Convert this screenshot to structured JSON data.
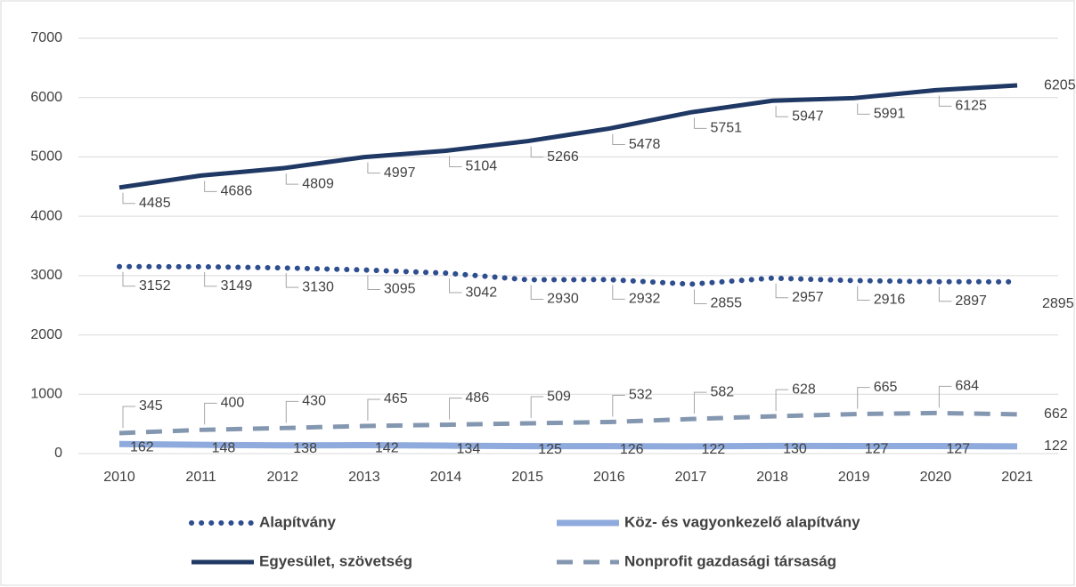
{
  "chart_data": {
    "type": "line",
    "categories": [
      "2010",
      "2011",
      "2012",
      "2013",
      "2014",
      "2015",
      "2016",
      "2017",
      "2018",
      "2019",
      "2020",
      "2021"
    ],
    "ylim": [
      0,
      7000
    ],
    "yticks": [
      0,
      1000,
      2000,
      3000,
      4000,
      5000,
      6000,
      7000
    ],
    "grid": true,
    "series": [
      {
        "name": "Alapítvány",
        "color": "#2e4e8f",
        "style": "dotted",
        "values": [
          3152,
          3149,
          3130,
          3095,
          3042,
          2930,
          2932,
          2855,
          2957,
          2916,
          2897,
          2895
        ]
      },
      {
        "name": "Köz- és vagyonkezelő alapítvány",
        "color": "#8faadc",
        "style": "solid",
        "values": [
          162,
          148,
          138,
          142,
          134,
          125,
          126,
          122,
          130,
          127,
          127,
          122
        ]
      },
      {
        "name": "Egyesület, szövetség",
        "color": "#1f3864",
        "style": "solid",
        "values": [
          4485,
          4686,
          4809,
          4997,
          5104,
          5266,
          5478,
          5751,
          5947,
          5991,
          6125,
          6205
        ]
      },
      {
        "name": "Nonprofit gazdasági társaság",
        "color": "#8497b0",
        "style": "dashed",
        "values": [
          345,
          400,
          430,
          465,
          486,
          509,
          532,
          582,
          628,
          665,
          684,
          662
        ]
      }
    ]
  }
}
